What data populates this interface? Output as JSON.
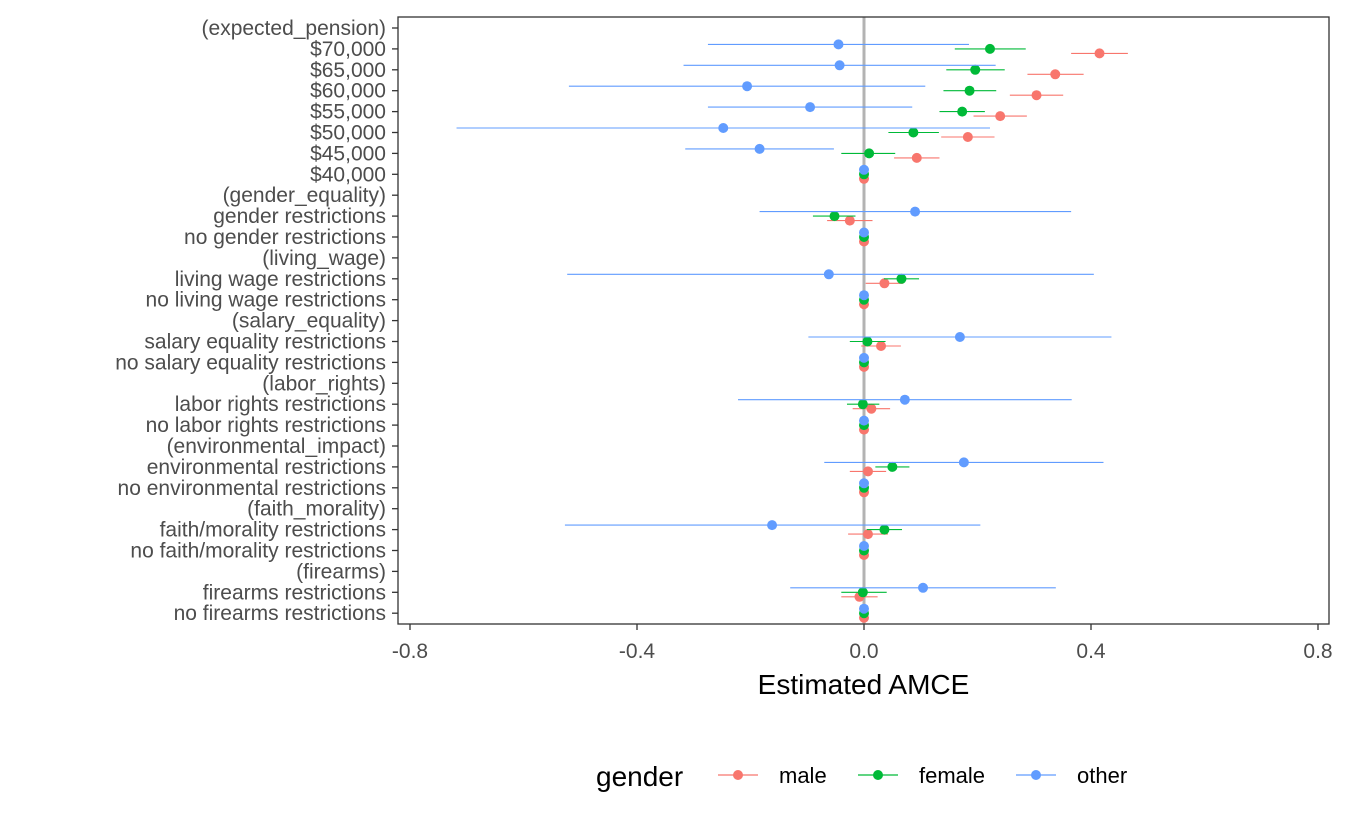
{
  "chart_data": {
    "type": "scatter",
    "subtype": "coefficient-plot-with-confidence-intervals",
    "xlabel": "Estimated AMCE",
    "ylabel": "",
    "xlim": [
      -0.8,
      0.8
    ],
    "xticks": [
      "-0.8",
      "-0.4",
      "0.0",
      "0.4",
      "0.8"
    ],
    "xtick_values": [
      -0.8,
      -0.4,
      0.0,
      0.4,
      0.8
    ],
    "reference_line_x": 0.0,
    "grid": false,
    "legend": {
      "title": "gender",
      "position": "bottom"
    },
    "categories": [
      "(expected_pension)",
      "$70,000",
      "$65,000",
      "$60,000",
      "$55,000",
      "$50,000",
      "$45,000",
      "$40,000",
      "(gender_equality)",
      "gender restrictions",
      "no gender restrictions",
      "(living_wage)",
      "living wage restrictions",
      "no living wage restrictions",
      "(salary_equality)",
      "salary equality restrictions",
      "no salary equality restrictions",
      "(labor_rights)",
      "labor rights restrictions",
      "no labor rights restrictions",
      "(environmental_impact)",
      "environmental restrictions",
      "no environmental restrictions",
      "(faith_morality)",
      "faith/morality restrictions",
      "no faith/morality restrictions",
      "(firearms)",
      "firearms restrictions",
      "no firearms restrictions"
    ],
    "series": [
      {
        "name": "male",
        "color": "#F8766D",
        "estimates": [
          null,
          0.415,
          0.337,
          0.304,
          0.24,
          0.183,
          0.093,
          0.0,
          null,
          -0.025,
          0.0,
          null,
          0.036,
          0.0,
          null,
          0.03,
          0.0,
          null,
          0.013,
          0.0,
          null,
          0.007,
          0.0,
          null,
          0.007,
          0.0,
          null,
          -0.008,
          0.0
        ],
        "lower": [
          null,
          0.365,
          0.288,
          0.257,
          0.193,
          0.136,
          0.053,
          0.0,
          null,
          -0.065,
          0.0,
          null,
          0.003,
          0.0,
          null,
          -0.005,
          0.0,
          null,
          -0.02,
          0.0,
          null,
          -0.025,
          0.0,
          null,
          -0.028,
          0.0,
          null,
          -0.04,
          0.0
        ],
        "upper": [
          null,
          0.465,
          0.387,
          0.351,
          0.287,
          0.23,
          0.133,
          0.0,
          null,
          0.015,
          0.0,
          null,
          0.069,
          0.0,
          null,
          0.065,
          0.0,
          null,
          0.046,
          0.0,
          null,
          0.039,
          0.0,
          null,
          0.042,
          0.0,
          null,
          0.024,
          0.0
        ]
      },
      {
        "name": "female",
        "color": "#00BA38",
        "estimates": [
          null,
          0.222,
          0.196,
          0.186,
          0.173,
          0.087,
          0.009,
          0.0,
          null,
          -0.052,
          0.0,
          null,
          0.066,
          0.0,
          null,
          0.006,
          0.0,
          null,
          -0.002,
          0.0,
          null,
          0.05,
          0.0,
          null,
          0.036,
          0.0,
          null,
          -0.002,
          0.0
        ],
        "lower": [
          null,
          0.16,
          0.145,
          0.14,
          0.133,
          0.043,
          -0.04,
          0.0,
          null,
          -0.09,
          0.0,
          null,
          0.035,
          0.0,
          null,
          -0.025,
          0.0,
          null,
          -0.03,
          0.0,
          null,
          0.02,
          0.0,
          null,
          0.005,
          0.0,
          null,
          -0.04,
          0.0
        ],
        "upper": [
          null,
          0.285,
          0.248,
          0.233,
          0.213,
          0.132,
          0.055,
          0.0,
          null,
          -0.015,
          0.0,
          null,
          0.097,
          0.0,
          null,
          0.038,
          0.0,
          null,
          0.027,
          0.0,
          null,
          0.08,
          0.0,
          null,
          0.067,
          0.0,
          null,
          0.04,
          0.0
        ]
      },
      {
        "name": "other",
        "color": "#619CFF",
        "estimates": [
          null,
          -0.045,
          -0.043,
          -0.206,
          -0.095,
          -0.248,
          -0.184,
          0.0,
          null,
          0.09,
          0.0,
          null,
          -0.062,
          0.0,
          null,
          0.169,
          0.0,
          null,
          0.072,
          0.0,
          null,
          0.176,
          0.0,
          null,
          -0.162,
          0.0,
          null,
          0.104,
          0.0
        ],
        "lower": [
          null,
          -0.275,
          -0.318,
          -0.52,
          -0.275,
          -0.718,
          -0.315,
          0.0,
          null,
          -0.184,
          0.0,
          null,
          -0.523,
          0.0,
          null,
          -0.098,
          0.0,
          null,
          -0.222,
          0.0,
          null,
          -0.07,
          0.0,
          null,
          -0.527,
          0.0,
          null,
          -0.13,
          0.0
        ],
        "upper": [
          null,
          0.185,
          0.232,
          0.108,
          0.085,
          0.222,
          -0.053,
          0.0,
          null,
          0.365,
          0.0,
          null,
          0.405,
          0.0,
          null,
          0.436,
          0.0,
          null,
          0.366,
          0.0,
          null,
          0.422,
          0.0,
          null,
          0.205,
          0.0,
          null,
          0.338,
          0.0
        ]
      }
    ]
  }
}
